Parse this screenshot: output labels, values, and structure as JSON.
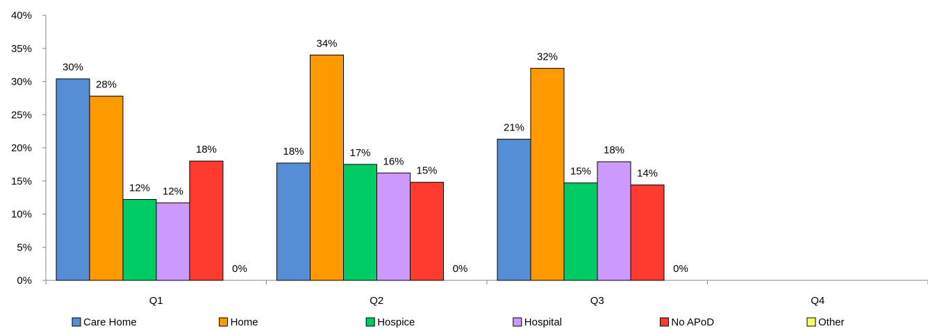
{
  "chart_data": {
    "type": "bar",
    "title": "",
    "xlabel": "",
    "ylabel": "",
    "categories": [
      "Q1",
      "Q2",
      "Q3",
      "Q4"
    ],
    "ylim": [
      0,
      40
    ],
    "y_ticks": [
      "0%",
      "5%",
      "10%",
      "15%",
      "20%",
      "25%",
      "30%",
      "35%",
      "40%"
    ],
    "y_tick_values": [
      0,
      5,
      10,
      15,
      20,
      25,
      30,
      35,
      40
    ],
    "grid": false,
    "legend_position": "bottom",
    "series": [
      {
        "name": "Care Home",
        "color": "#558ED5",
        "values": [
          30.4,
          17.7,
          21.3,
          null
        ],
        "labels": [
          "30%",
          "18%",
          "21%",
          null
        ]
      },
      {
        "name": "Home",
        "color": "#FF9900",
        "values": [
          27.8,
          34.0,
          32.0,
          null
        ],
        "labels": [
          "28%",
          "34%",
          "32%",
          null
        ]
      },
      {
        "name": "Hospice",
        "color": "#00CC66",
        "values": [
          12.2,
          17.5,
          14.7,
          null
        ],
        "labels": [
          "12%",
          "17%",
          "15%",
          null
        ]
      },
      {
        "name": "Hospital",
        "color": "#CC99FF",
        "values": [
          11.7,
          16.2,
          17.9,
          null
        ],
        "labels": [
          "12%",
          "16%",
          "18%",
          null
        ]
      },
      {
        "name": "No APoD",
        "color": "#FF3B30",
        "values": [
          18.0,
          14.8,
          14.4,
          null
        ],
        "labels": [
          "18%",
          "15%",
          "14%",
          null
        ]
      },
      {
        "name": "Other",
        "color": "#FFFF66",
        "values": [
          0,
          0,
          0,
          null
        ],
        "labels": [
          "0%",
          "0%",
          "0%",
          null
        ]
      }
    ]
  }
}
